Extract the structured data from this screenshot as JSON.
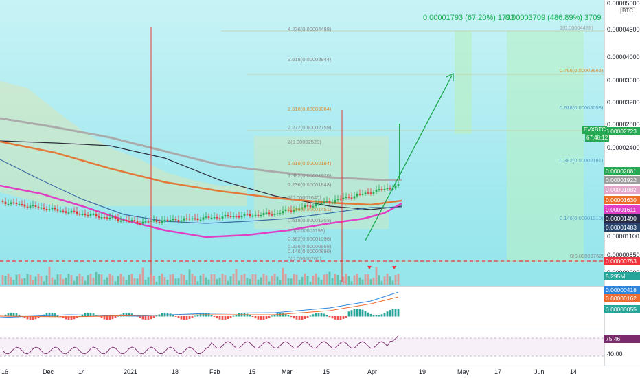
{
  "symbol": {
    "badge": "EVXBTC",
    "countdown": "67:48:12",
    "currency": "BTC"
  },
  "annotations": {
    "measure_1": "0.00001793 (67.20%) 1793",
    "measure_2": "0.00003709 (486.89%) 3709"
  },
  "left_fib": [
    {
      "text": "4.236(0.00004488)",
      "color": "#8a8a8a"
    },
    {
      "text": "3.618(0.00003944)",
      "color": "#8a8a8a"
    },
    {
      "text": "2.618(0.00003064)",
      "color": "#d58f3a"
    },
    {
      "text": "2.272(0.00002759)",
      "color": "#8a8a8a"
    },
    {
      "text": "2(0.00002520)",
      "color": "#8a8a8a"
    },
    {
      "text": "1.618(0.00002184)",
      "color": "#d58f3a"
    },
    {
      "text": "1.382(0.00001976)",
      "color": "#8a8a8a"
    },
    {
      "text": "1.236(0.00001848)",
      "color": "#8a8a8a"
    },
    {
      "text": "1(0.00001640)",
      "color": "#8a8a8a"
    },
    {
      "text": "0.786(0.00001451)",
      "color": "#d58f3a"
    },
    {
      "text": "0.618(0.00001303)",
      "color": "#8a8a8a"
    },
    {
      "text": "0.5(0.00001199)",
      "color": "#8a8a8a"
    },
    {
      "text": "0.382(0.00001096)",
      "color": "#8a8a8a"
    },
    {
      "text": "0.236(0.00000968)",
      "color": "#8a8a8a"
    },
    {
      "text": "0.146(0.00000890)",
      "color": "#8a8a8a"
    },
    {
      "text": "0(0.00000760)",
      "color": "#8a8a8a"
    }
  ],
  "right_fib": [
    {
      "text": "1(0.00004478)",
      "color": "#a0a0a0"
    },
    {
      "text": "0.786(0.00003683)",
      "color": "#d58f3a"
    },
    {
      "text": "0.618(0.00003058)",
      "color": "#5aa0c8"
    },
    {
      "text": "0.382(0.00002181)",
      "color": "#5aa0c8"
    },
    {
      "text": "0.146(0.00001310)",
      "color": "#5aa0c8"
    },
    {
      "text": "0(0.00000762)",
      "color": "#8a8a8a"
    }
  ],
  "price_axis": {
    "ticks": [
      "0.00005000",
      "0.00004500",
      "0.00004000",
      "0.00003600",
      "0.00003200",
      "0.00002800",
      "0.00002400",
      "0.00001100",
      "0.00000850",
      "0.00000600"
    ],
    "labels": [
      {
        "value": "0.00002723",
        "color": "#27a852"
      },
      {
        "value": "0.00002081",
        "color": "#27a852"
      },
      {
        "value": "0.00001922",
        "color": "#9e9e9e"
      },
      {
        "value": "0.00001882",
        "color": "#e2a6c8"
      },
      {
        "value": "0.00001630",
        "color": "#ef6c2f"
      },
      {
        "value": "0.00001611",
        "color": "#e040c4"
      },
      {
        "value": "0.00001490",
        "color": "#262a46"
      },
      {
        "value": "0.00001483",
        "color": "#28456e"
      },
      {
        "value": "0.00000753",
        "color": "#f0323a"
      }
    ],
    "volume": "5.295M",
    "macd": [
      {
        "value": "0.00000418",
        "color": "#2e86de"
      },
      {
        "value": "0.00000162",
        "color": "#ef6c2f"
      },
      {
        "value": "0.00000055",
        "color": "#26a69a"
      }
    ],
    "rsi": {
      "value": "75.46",
      "tick": "40.00"
    }
  },
  "time_axis": [
    "16",
    "Dec",
    "14",
    "2021",
    "18",
    "Feb",
    "15",
    "Mar",
    "15",
    "Apr",
    "19",
    "May",
    "17",
    "Jun",
    "14"
  ],
  "colors": {
    "up": "#27a852",
    "down": "#e53935",
    "sma200": "#ababab",
    "ema100": "#2c2c3c",
    "ema200": "#e27a3a",
    "ema50": "#e040c4",
    "ema20": "#5aa5d4",
    "support": "#f0323a"
  }
}
